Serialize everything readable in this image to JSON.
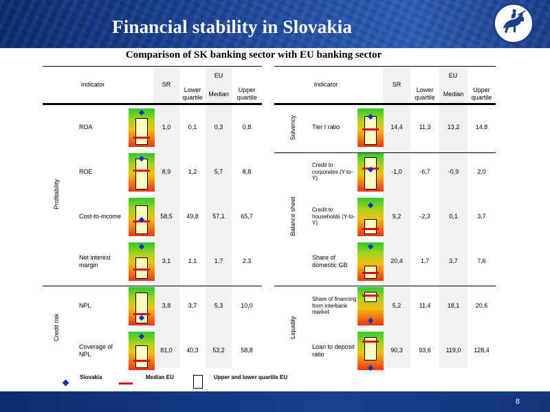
{
  "header": {
    "title": "Financial stability in Slovakia",
    "logo_icon": "horse-rider-logo-icon"
  },
  "subtitle": "Comparison of SK banking sector with EU banking sector",
  "columns": {
    "indicator": "Indicator",
    "sr": "SR",
    "eu": "EU",
    "lower": "Lower quartile",
    "median": "Median",
    "upper": "Upper quartile"
  },
  "left": {
    "groups": [
      {
        "label": "Profitability"
      },
      {
        "label": "Credit risk"
      }
    ],
    "rows": [
      {
        "indicator": "ROA",
        "sr": "1,0",
        "lower": "0,1",
        "median": "0,3",
        "upper": "0,8",
        "gauge": {
          "box_top": 0.25,
          "box_bottom": 0.95,
          "median": 0.75,
          "marker": 0.1
        }
      },
      {
        "indicator": "ROE",
        "sr": "8,9",
        "lower": "1,2",
        "median": "5,7",
        "upper": "8,8",
        "gauge": {
          "box_top": 0.15,
          "box_bottom": 0.95,
          "median": 0.45,
          "marker": 0.15
        }
      },
      {
        "indicator": "Cost-to-income",
        "sr": "58,5",
        "lower": "49,8",
        "median": "57,1",
        "upper": "65,7",
        "gauge": {
          "box_top": 0.2,
          "box_bottom": 0.95,
          "median": 0.62,
          "marker": 0.57
        }
      },
      {
        "indicator": "Net interest margin",
        "sr": "3,1",
        "lower": "1,1",
        "median": "1,7",
        "upper": "2,3",
        "gauge": {
          "box_top": 0.4,
          "box_bottom": 0.95,
          "median": 0.7,
          "marker": 0.1
        }
      },
      {
        "indicator": "NPL",
        "sr": "3,8",
        "lower": "3,7",
        "median": "5,3",
        "upper": "10,0",
        "gauge": {
          "box_top": 0.15,
          "box_bottom": 0.95,
          "median": 0.7,
          "marker": 0.8
        }
      },
      {
        "indicator": "Coverage of NPL",
        "sr": "81,0",
        "lower": "40,3",
        "median": "53,2",
        "upper": "58,8",
        "gauge": {
          "box_top": 0.35,
          "box_bottom": 0.95,
          "median": 0.75,
          "marker": 0.12
        }
      }
    ]
  },
  "right": {
    "groups": [
      {
        "label": "Solvency"
      },
      {
        "label": "Balance sheet"
      },
      {
        "label": "Liquidity"
      }
    ],
    "rows": [
      {
        "indicator": "Tier I ratio",
        "sr": "14,4",
        "lower": "11,3",
        "median": "13,2",
        "upper": "14,8",
        "gauge": {
          "box_top": 0.2,
          "box_bottom": 0.95,
          "median": 0.55,
          "marker": 0.22
        }
      },
      {
        "indicator": "Credit to corporates (Y-to-Y)",
        "sr": "-1,0",
        "lower": "-6,7",
        "median": "-0,9",
        "upper": "2,0",
        "gauge": {
          "box_top": 0.1,
          "box_bottom": 0.95,
          "median": 0.4,
          "marker": 0.42
        }
      },
      {
        "indicator": "Credit to households (Y-to-Y)",
        "sr": "9,2",
        "lower": "-2,3",
        "median": "0,1",
        "upper": "3,7",
        "gauge": {
          "box_top": 0.55,
          "box_bottom": 0.95,
          "median": 0.82,
          "marker": 0.2
        }
      },
      {
        "indicator": "Share of domestic GB",
        "sr": "20,4",
        "lower": "1,7",
        "median": "3,7",
        "upper": "7,6",
        "gauge": {
          "box_top": 0.6,
          "box_bottom": 0.95,
          "median": 0.8,
          "marker": 0.1
        }
      },
      {
        "indicator": "Share of financing from interbank market",
        "sr": "5,2",
        "lower": "11,4",
        "median": "18,1",
        "upper": "20,6",
        "gauge": {
          "box_top": 0.12,
          "box_bottom": 0.4,
          "median": 0.22,
          "marker": 0.88
        }
      },
      {
        "indicator": "Loan to deposit ratio",
        "sr": "90,3",
        "lower": "93,6",
        "median": "119,0",
        "upper": "128,4",
        "gauge": {
          "box_top": 0.15,
          "box_bottom": 0.75,
          "median": 0.25,
          "marker": 0.95
        }
      }
    ]
  },
  "legend": {
    "slovakia": "Slovakia",
    "median": "Median EU",
    "quartile": "Upper and lower quartile EU"
  },
  "footer": {
    "page_number": "8"
  },
  "colors": {
    "band": "#1b3f8a",
    "median_line": "#e0001a",
    "marker": "#1030c0",
    "box_fill": "#ffffc0"
  }
}
